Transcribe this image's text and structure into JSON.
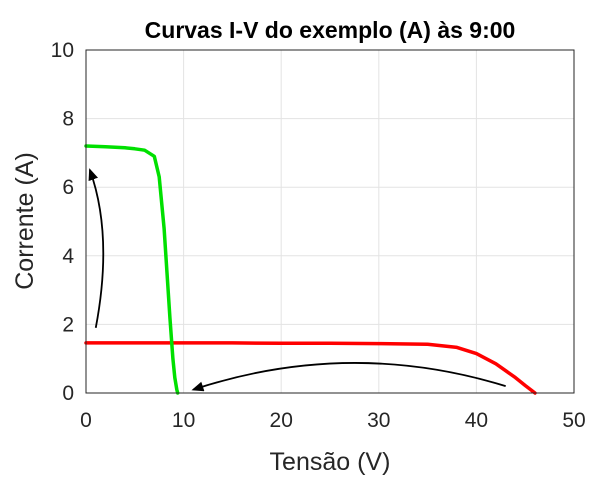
{
  "chart_data": {
    "type": "line",
    "title": "Curvas I-V do exemplo (A) às 9:00",
    "xlabel": "Tensão (V)",
    "ylabel": "Corrente (A)",
    "xlim": [
      0,
      50
    ],
    "ylim": [
      0,
      10
    ],
    "xticks": [
      "0",
      "10",
      "20",
      "30",
      "40",
      "50"
    ],
    "yticks": [
      "0",
      "2",
      "4",
      "6",
      "8",
      "10"
    ],
    "grid": true,
    "legend": "none",
    "series": [
      {
        "color": "#ff0000",
        "x": [
          0,
          5,
          10,
          15,
          20,
          25,
          30,
          35,
          38,
          40,
          42,
          44,
          45,
          46
        ],
        "y": [
          1.46,
          1.46,
          1.46,
          1.46,
          1.45,
          1.45,
          1.44,
          1.42,
          1.33,
          1.15,
          0.85,
          0.45,
          0.22,
          0.0
        ]
      },
      {
        "color": "#00e000",
        "x": [
          0,
          2,
          4,
          5,
          6,
          7,
          7.5,
          8,
          8.3,
          8.6,
          8.9,
          9.1,
          9.3,
          9.4
        ],
        "y": [
          7.2,
          7.18,
          7.15,
          7.12,
          7.08,
          6.9,
          6.3,
          4.8,
          3.5,
          2.2,
          1.0,
          0.45,
          0.1,
          0.0
        ]
      }
    ],
    "annotations": [
      {
        "type": "arrow",
        "from": [
          43,
          0.2
        ],
        "control": [
          27,
          1.6
        ],
        "to": [
          11,
          0.1
        ]
      },
      {
        "type": "arrow",
        "from": [
          1,
          1.9
        ],
        "control": [
          2.8,
          4.6
        ],
        "to": [
          0.4,
          6.5
        ]
      }
    ]
  }
}
